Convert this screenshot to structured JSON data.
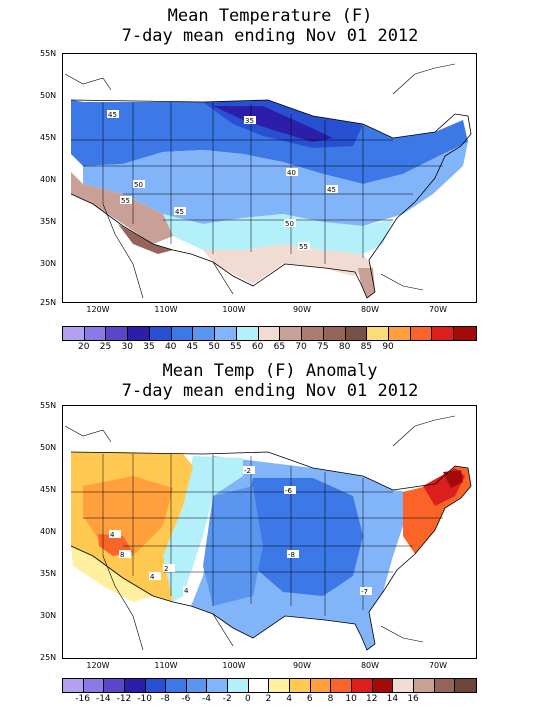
{
  "top_panel": {
    "title_line1": "Mean Temperature (F)",
    "title_line2": "7-day mean ending Nov 01 2012",
    "lat_labels": [
      "55N",
      "50N",
      "45N",
      "40N",
      "35N",
      "30N",
      "25N"
    ],
    "lon_labels": [
      "120W",
      "110W",
      "100W",
      "90W",
      "80W",
      "70W"
    ],
    "contour_labels": [
      "45",
      "35",
      "40",
      "50",
      "55",
      "45",
      "45",
      "50",
      "55"
    ],
    "colorbar_colors": [
      "#b4a0f0",
      "#8c78e6",
      "#5a46c8",
      "#2d1eaa",
      "#2850d2",
      "#3c78e6",
      "#5a96f0",
      "#82b4fa",
      "#b4f0fa",
      "#f0dcd2",
      "#c8a096",
      "#aa7d73",
      "#966459",
      "#785046",
      "#fadc78",
      "#ffa03c",
      "#fa6428",
      "#dc1e1e",
      "#a50a0a"
    ],
    "colorbar_labels": [
      "20",
      "25",
      "30",
      "35",
      "40",
      "45",
      "50",
      "55",
      "60",
      "65",
      "70",
      "75",
      "80",
      "85",
      "90"
    ]
  },
  "bottom_panel": {
    "title_line1": "Mean Temp (F) Anomaly",
    "title_line2": "7-day mean ending Nov 01 2012",
    "lat_labels": [
      "55N",
      "50N",
      "45N",
      "40N",
      "35N",
      "30N",
      "25N"
    ],
    "lon_labels": [
      "120W",
      "110W",
      "100W",
      "90W",
      "80W",
      "70W"
    ],
    "contour_labels": [
      "-2",
      "-6",
      "4",
      "8",
      "2",
      "4",
      "4",
      "-8",
      "-7"
    ],
    "colorbar_colors": [
      "#b4a0f0",
      "#8c78e6",
      "#5a46c8",
      "#2d1eaa",
      "#2850d2",
      "#3c78e6",
      "#5a96f0",
      "#82b4fa",
      "#b4f0fa",
      "#ffffff",
      "#fff0a0",
      "#ffc850",
      "#ffa03c",
      "#fa6428",
      "#dc1e1e",
      "#a50a0a",
      "#f0dcd2",
      "#c8a096",
      "#966459",
      "#6e4637"
    ],
    "colorbar_labels": [
      "-16",
      "-14",
      "-12",
      "-10",
      "-8",
      "-6",
      "-4",
      "-2",
      "0",
      "2",
      "4",
      "6",
      "8",
      "10",
      "12",
      "14",
      "16"
    ]
  }
}
